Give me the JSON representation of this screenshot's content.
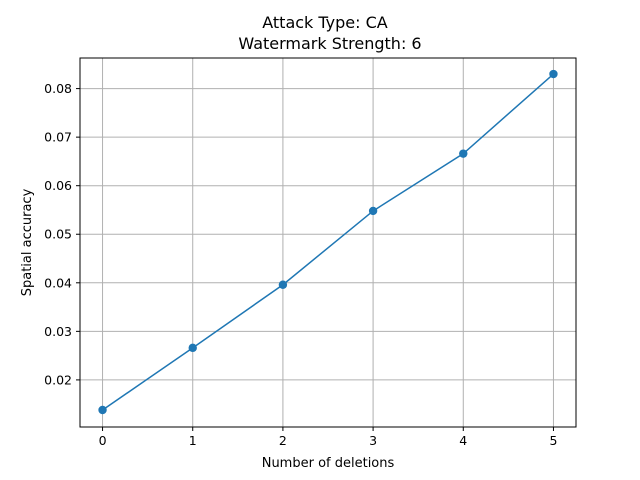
{
  "chart_data": {
    "type": "line",
    "title": "Attack Type: CA",
    "subtitle": "Watermark Strength: 6",
    "xlabel": "Number of deletions",
    "ylabel": "Spatial accuracy",
    "xlim": [
      -0.25,
      5.25
    ],
    "ylim": [
      0.0103,
      0.0863
    ],
    "x_ticks": [
      0,
      1,
      2,
      3,
      4,
      5
    ],
    "y_ticks": [
      0.02,
      0.03,
      0.04,
      0.05,
      0.06,
      0.07,
      0.08
    ],
    "grid": true,
    "series": [
      {
        "color": "#1f77b4",
        "marker": "circle",
        "x": [
          0,
          1,
          2,
          3,
          4,
          5
        ],
        "y": [
          0.0138,
          0.0266,
          0.0396,
          0.0548,
          0.0666,
          0.083
        ]
      }
    ]
  }
}
